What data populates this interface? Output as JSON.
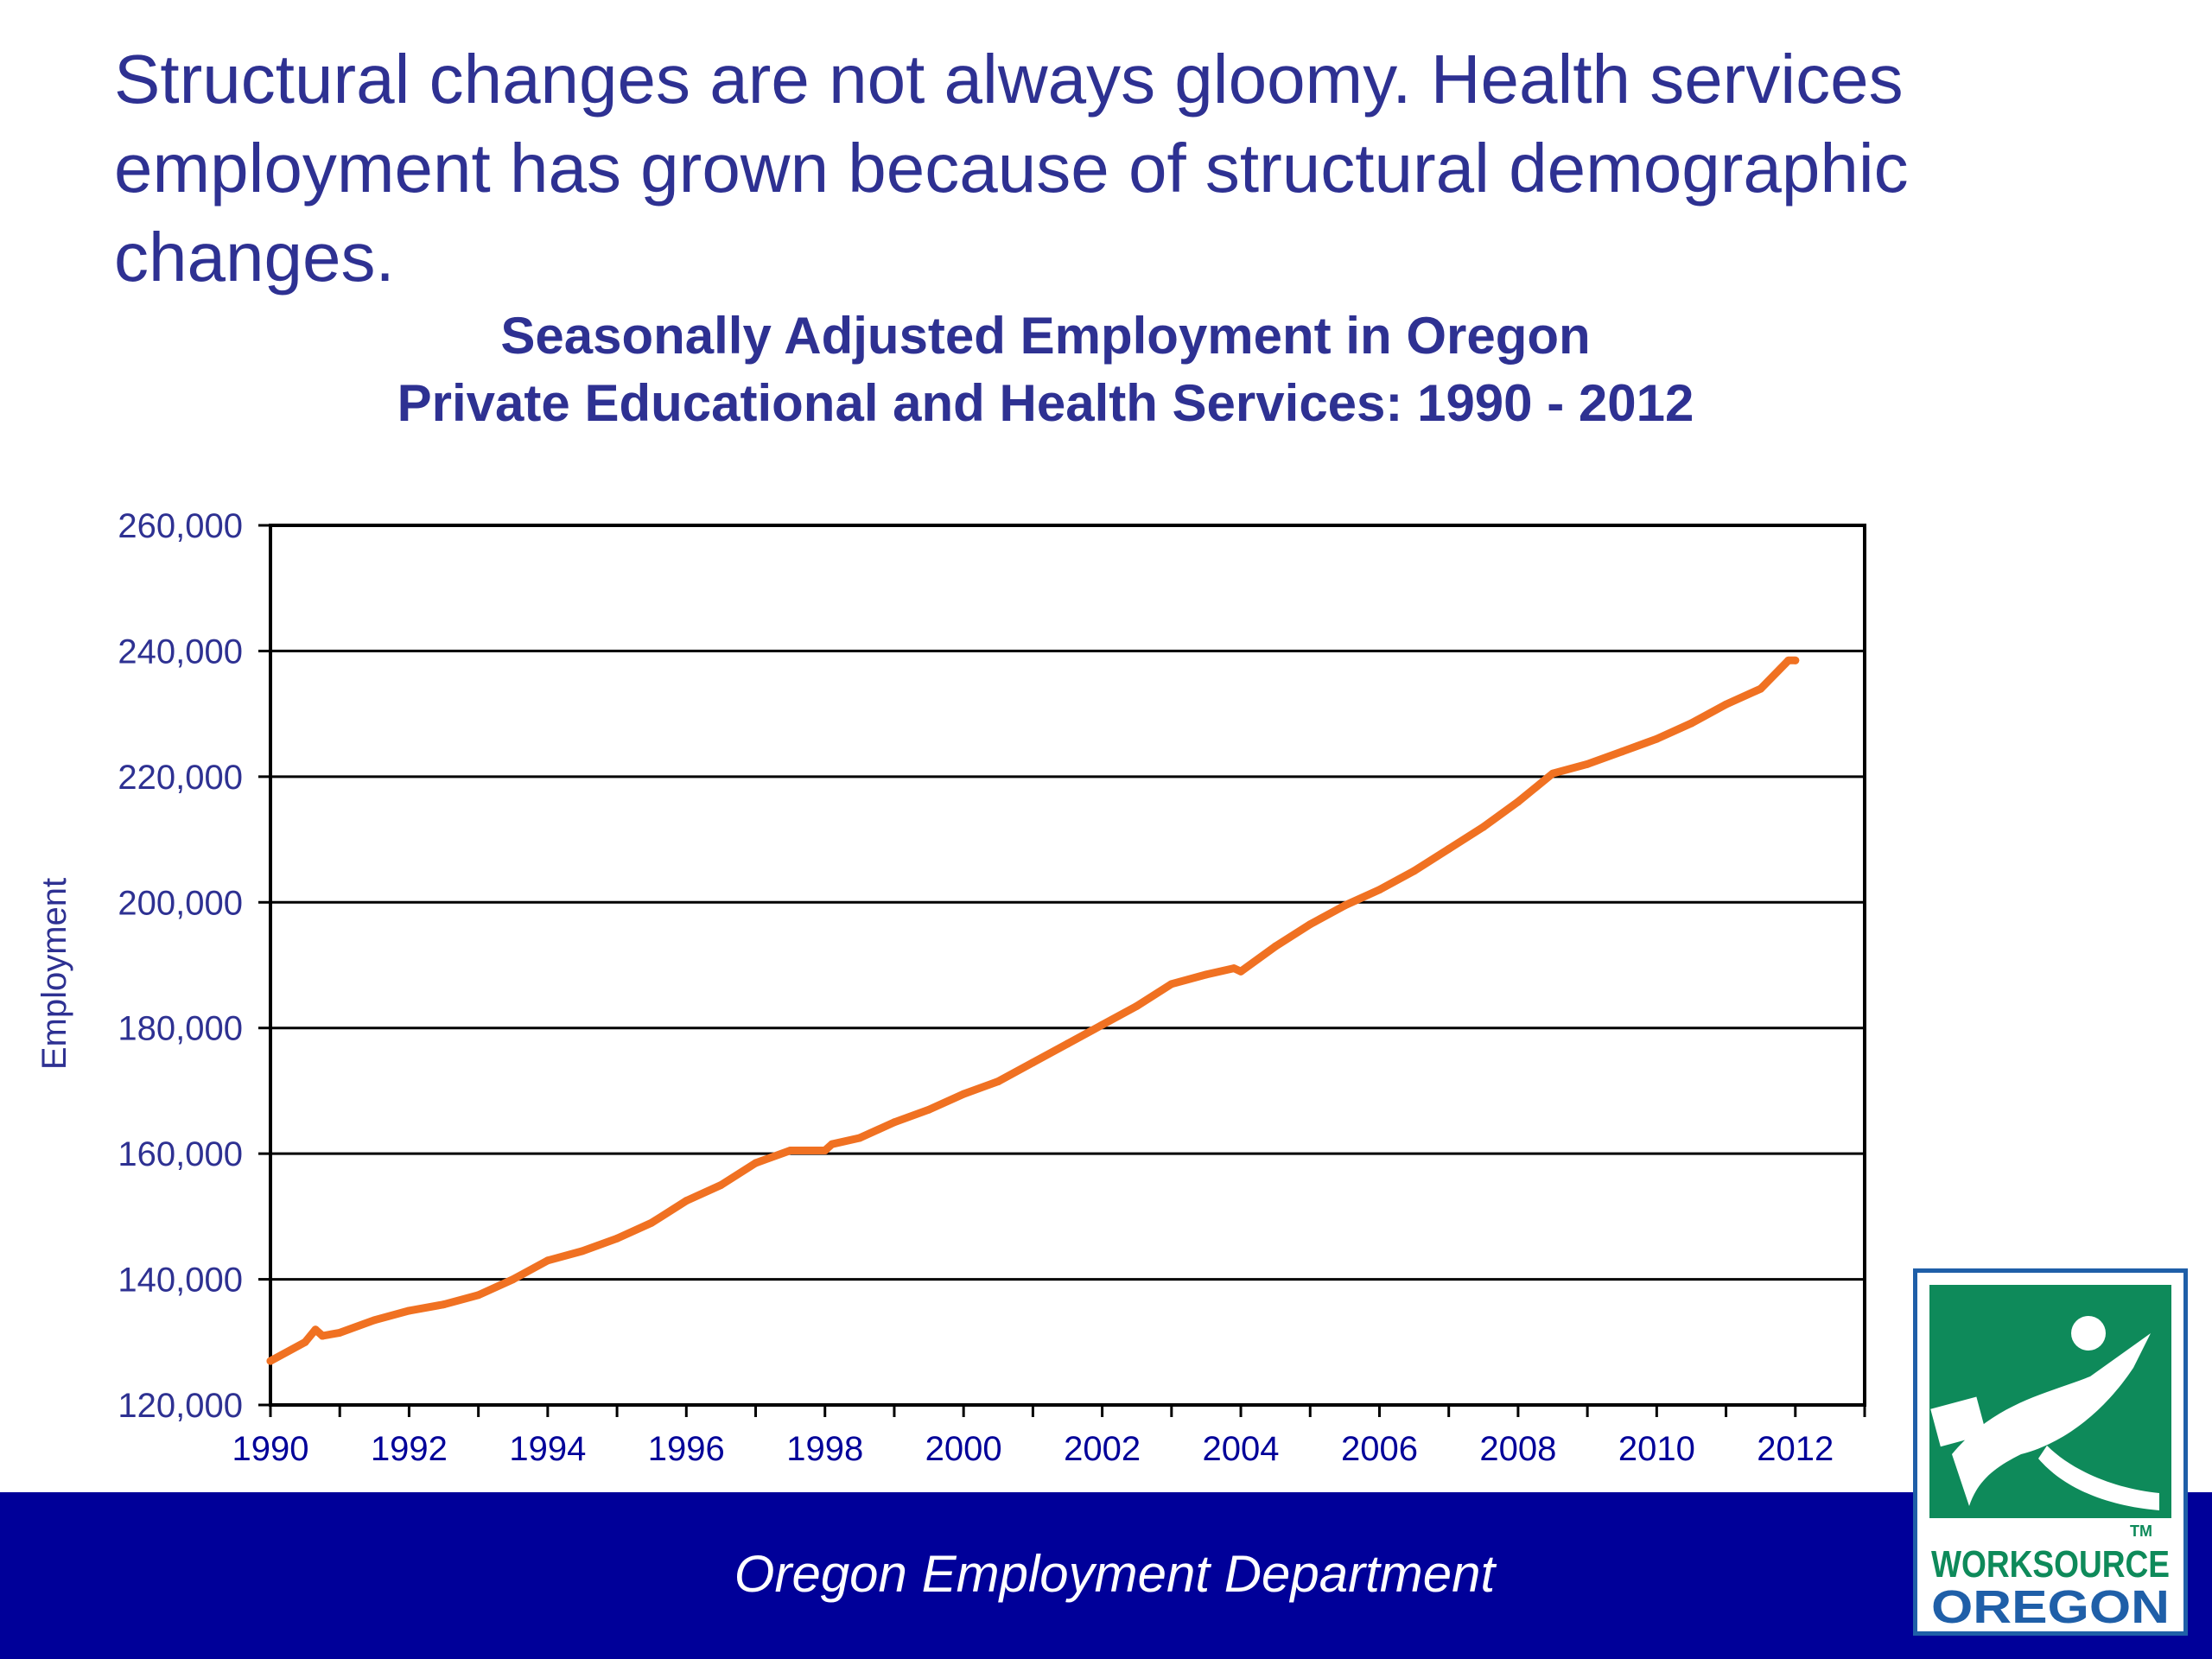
{
  "headline": "Structural changes are not always gloomy. Health services employment has grown because of structural demographic changes.",
  "footer": {
    "text": "Oregon Employment Department"
  },
  "logo": {
    "line1": "WORKSOURCE",
    "line2": "OREGON",
    "tm": "TM"
  },
  "colors": {
    "title": "#2e3192",
    "line": "#f07122",
    "footer": "#000099",
    "logo_green": "#0e8a5a",
    "logo_blue": "#1f5fa8"
  },
  "chart_data": {
    "type": "line",
    "title": "Seasonally Adjusted Employment in Oregon",
    "subtitle": "Private Educational and Health Services:  1990 - 2012",
    "xlabel": "",
    "ylabel": "Employment",
    "xlim": [
      1990,
      2013
    ],
    "ylim": [
      120000,
      260000
    ],
    "grid": true,
    "x_ticks": [
      "1990",
      "1992",
      "1994",
      "1996",
      "1998",
      "2000",
      "2002",
      "2004",
      "2006",
      "2008",
      "2010",
      "2012"
    ],
    "y_ticks": [
      "120,000",
      "140,000",
      "160,000",
      "180,000",
      "200,000",
      "220,000",
      "240,000",
      "260,000"
    ],
    "x": [
      1990.0,
      1990.5,
      1990.65,
      1990.75,
      1991.0,
      1991.5,
      1992.0,
      1992.5,
      1993.0,
      1993.5,
      1994.0,
      1994.5,
      1995.0,
      1995.5,
      1996.0,
      1996.5,
      1997.0,
      1997.5,
      1998.0,
      1998.1,
      1998.5,
      1999.0,
      1999.5,
      2000.0,
      2000.5,
      2001.0,
      2001.5,
      2002.0,
      2002.5,
      2003.0,
      2003.5,
      2003.9,
      2004.0,
      2004.5,
      2005.0,
      2005.5,
      2006.0,
      2006.5,
      2007.0,
      2007.5,
      2008.0,
      2008.5,
      2009.0,
      2009.5,
      2010.0,
      2010.5,
      2011.0,
      2011.5,
      2011.9,
      2012.0
    ],
    "values": [
      127000,
      130000,
      132000,
      131000,
      131500,
      133500,
      135000,
      136000,
      137500,
      140000,
      143000,
      144500,
      146500,
      149000,
      152500,
      155000,
      158500,
      160500,
      160500,
      161500,
      162500,
      165000,
      167000,
      169500,
      171500,
      174500,
      177500,
      180500,
      183500,
      187000,
      188500,
      189500,
      189000,
      193000,
      196500,
      199500,
      202000,
      205000,
      208500,
      212000,
      216000,
      220500,
      222000,
      224000,
      226000,
      228500,
      231500,
      234000,
      238500,
      238500
    ],
    "series": [
      {
        "name": "",
        "color": "#f07122"
      }
    ]
  }
}
